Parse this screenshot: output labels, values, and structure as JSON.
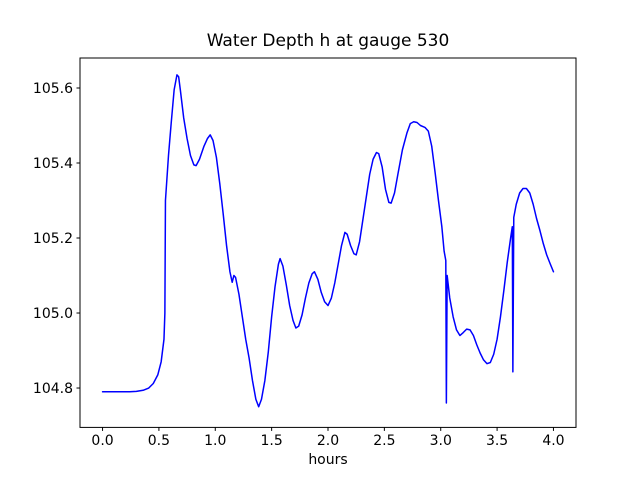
{
  "figure": {
    "background": "#ffffff",
    "frame_color": "#000000",
    "text_color": "#000000"
  },
  "chart_data": {
    "type": "line",
    "title": "Water Depth h at gauge 530",
    "xlabel": "hours",
    "ylabel": "",
    "line_color": "#0000ff",
    "line_width": 1.5,
    "grid": false,
    "legend": null,
    "xlim": [
      -0.2,
      4.2
    ],
    "ylim": [
      104.695,
      105.68
    ],
    "x_ticks": [
      0.0,
      0.5,
      1.0,
      1.5,
      2.0,
      2.5,
      3.0,
      3.5,
      4.0
    ],
    "x_tick_labels": [
      "0.0",
      "0.5",
      "1.0",
      "1.5",
      "2.0",
      "2.5",
      "3.0",
      "3.5",
      "4.0"
    ],
    "y_ticks": [
      104.8,
      105.0,
      105.2,
      105.4,
      105.6
    ],
    "y_tick_labels": [
      "104.8",
      "105.0",
      "105.2",
      "105.4",
      "105.6"
    ],
    "series": [
      {
        "name": "h",
        "x": [
          0.0,
          0.06,
          0.12,
          0.18,
          0.24,
          0.3,
          0.36,
          0.41,
          0.45,
          0.49,
          0.52,
          0.545,
          0.553,
          0.558,
          0.585,
          0.61,
          0.635,
          0.66,
          0.675,
          0.69,
          0.72,
          0.75,
          0.78,
          0.81,
          0.83,
          0.86,
          0.9,
          0.93,
          0.955,
          0.98,
          1.01,
          1.04,
          1.07,
          1.1,
          1.13,
          1.15,
          1.165,
          1.18,
          1.21,
          1.24,
          1.27,
          1.3,
          1.33,
          1.36,
          1.385,
          1.41,
          1.44,
          1.47,
          1.5,
          1.53,
          1.56,
          1.575,
          1.6,
          1.63,
          1.66,
          1.69,
          1.715,
          1.74,
          1.77,
          1.8,
          1.83,
          1.86,
          1.88,
          1.91,
          1.94,
          1.97,
          2.0,
          2.03,
          2.06,
          2.09,
          2.12,
          2.15,
          2.17,
          2.2,
          2.23,
          2.25,
          2.28,
          2.31,
          2.34,
          2.37,
          2.4,
          2.43,
          2.45,
          2.48,
          2.51,
          2.54,
          2.56,
          2.59,
          2.62,
          2.66,
          2.7,
          2.73,
          2.76,
          2.79,
          2.82,
          2.86,
          2.89,
          2.92,
          2.95,
          2.98,
          3.01,
          3.03,
          3.045,
          3.05,
          3.057,
          3.08,
          3.11,
          3.14,
          3.17,
          3.2,
          3.23,
          3.26,
          3.29,
          3.32,
          3.35,
          3.38,
          3.41,
          3.44,
          3.47,
          3.5,
          3.53,
          3.56,
          3.59,
          3.62,
          3.635,
          3.64,
          3.648,
          3.67,
          3.7,
          3.73,
          3.76,
          3.79,
          3.82,
          3.85,
          3.88,
          3.91,
          3.94,
          3.97,
          4.0
        ],
        "y": [
          104.79,
          104.79,
          104.79,
          104.79,
          104.79,
          104.791,
          104.794,
          104.8,
          104.812,
          104.835,
          104.87,
          104.93,
          105.0,
          105.3,
          105.42,
          105.51,
          105.595,
          105.635,
          105.63,
          105.595,
          105.52,
          105.465,
          105.42,
          105.395,
          105.393,
          105.41,
          105.445,
          105.465,
          105.475,
          105.46,
          105.415,
          105.345,
          105.265,
          105.18,
          105.11,
          105.082,
          105.1,
          105.095,
          105.05,
          104.99,
          104.93,
          104.88,
          104.82,
          104.77,
          104.75,
          104.77,
          104.82,
          104.895,
          104.99,
          105.07,
          105.13,
          105.145,
          105.125,
          105.075,
          105.02,
          104.98,
          104.96,
          104.965,
          104.995,
          105.04,
          105.08,
          105.105,
          105.11,
          105.09,
          105.055,
          105.03,
          105.02,
          105.04,
          105.08,
          105.13,
          105.18,
          105.215,
          105.21,
          105.18,
          105.158,
          105.155,
          105.19,
          105.25,
          105.31,
          105.37,
          105.41,
          105.428,
          105.425,
          105.39,
          105.33,
          105.295,
          105.293,
          105.32,
          105.37,
          105.435,
          105.48,
          105.505,
          105.51,
          105.508,
          105.5,
          105.495,
          105.485,
          105.445,
          105.375,
          105.3,
          105.23,
          105.165,
          105.14,
          104.76,
          105.1,
          105.04,
          104.99,
          104.955,
          104.94,
          104.948,
          104.957,
          104.955,
          104.94,
          104.915,
          104.893,
          104.875,
          104.865,
          104.868,
          104.89,
          104.93,
          104.99,
          105.06,
          105.135,
          105.2,
          105.23,
          104.843,
          105.255,
          105.29,
          105.32,
          105.332,
          105.332,
          105.32,
          105.29,
          105.252,
          105.22,
          105.185,
          105.155,
          105.132,
          105.11
        ]
      }
    ]
  }
}
